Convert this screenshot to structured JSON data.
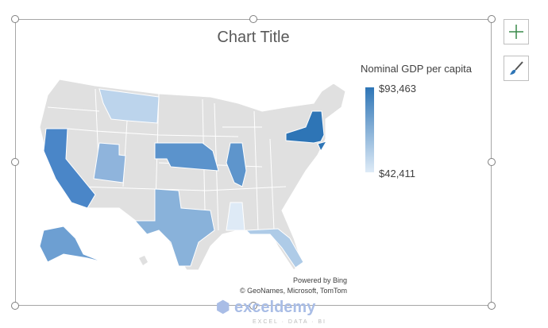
{
  "chart_data": {
    "type": "map",
    "title": "Chart Title",
    "legend": {
      "title": "Nominal GDP per capita",
      "max_label": "$93,463",
      "min_label": "$42,411",
      "max": 93463,
      "min": 42411,
      "placement": "top-right",
      "color_max": "#2e75b6",
      "color_min": "#deebf7"
    },
    "regions": [
      {
        "name": "New York",
        "fill": "#2e75b6"
      },
      {
        "name": "California",
        "fill": "#4a86c8"
      },
      {
        "name": "Nebraska",
        "fill": "#5b93cc"
      },
      {
        "name": "Illinois",
        "fill": "#5e95cc"
      },
      {
        "name": "Alaska",
        "fill": "#6d9fd2"
      },
      {
        "name": "Texas",
        "fill": "#89b2da"
      },
      {
        "name": "Utah",
        "fill": "#8fb4dc"
      },
      {
        "name": "Florida",
        "fill": "#aecbe7"
      },
      {
        "name": "Montana",
        "fill": "#bcd4ec"
      },
      {
        "name": "Mississippi",
        "fill": "#deeaf6"
      },
      {
        "name": "New Jersey",
        "fill": "#2e75b6"
      }
    ],
    "base_fill": "#e0e0e0"
  },
  "attribution": {
    "line1": "Powered by Bing",
    "line2": "© GeoNames, Microsoft, TomTom"
  },
  "side_buttons": {
    "add": "plus-icon",
    "style": "brush-icon"
  },
  "watermark": {
    "name": "exceldemy",
    "tagline": "EXCEL · DATA · BI"
  }
}
